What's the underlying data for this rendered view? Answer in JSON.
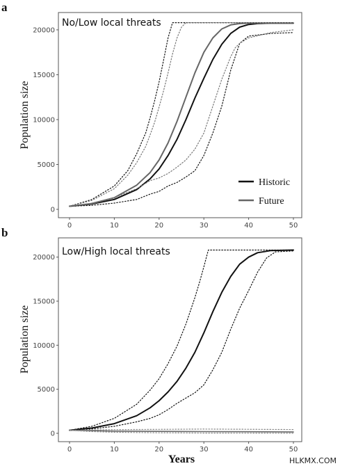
{
  "figure": {
    "watermark": "HLKMX.COM",
    "legend": {
      "placement": "bottom-right"
    }
  },
  "chart_data": [
    {
      "type": "line",
      "panel_label": "a",
      "title": "No/Low local threats",
      "xlabel": "",
      "ylabel": "Population size",
      "xlim": [
        0,
        50
      ],
      "ylim": [
        0,
        21000
      ],
      "xticks": [
        "0",
        "10",
        "20",
        "30",
        "40",
        "50"
      ],
      "yticks": [
        "0",
        "5000",
        "10000",
        "15000",
        "20000"
      ],
      "grid": false,
      "legend_entries": [
        "Historic",
        "Future"
      ],
      "series": [
        {
          "name": "Historic",
          "style": "solid",
          "color": "#111111",
          "width": 2,
          "x": [
            0,
            5,
            10,
            15,
            18,
            20,
            22,
            24,
            26,
            28,
            30,
            32,
            34,
            36,
            38,
            40,
            42,
            45,
            50
          ],
          "y": [
            350,
            600,
            1100,
            2200,
            3400,
            4500,
            6000,
            7800,
            10000,
            12400,
            14600,
            16700,
            18400,
            19600,
            20300,
            20600,
            20700,
            20750,
            20750
          ]
        },
        {
          "name": "Future",
          "style": "solid",
          "color": "#666666",
          "width": 2,
          "x": [
            0,
            5,
            10,
            15,
            18,
            20,
            22,
            24,
            26,
            28,
            30,
            32,
            34,
            36,
            38,
            40,
            45,
            50
          ],
          "y": [
            350,
            650,
            1300,
            2700,
            4100,
            5500,
            7400,
            9800,
            12500,
            15200,
            17500,
            19100,
            20100,
            20550,
            20700,
            20750,
            20750,
            20750
          ]
        },
        {
          "style": "dotted",
          "color": "#111111",
          "width": 1.2,
          "x": [
            0,
            5,
            10,
            15,
            18,
            20,
            22,
            24,
            26,
            28,
            30,
            32,
            34,
            35,
            36,
            38,
            40,
            45,
            50
          ],
          "y": [
            350,
            450,
            700,
            1100,
            1700,
            2000,
            2600,
            3000,
            3600,
            4300,
            6000,
            8500,
            11500,
            13500,
            15500,
            18500,
            19300,
            19600,
            19700
          ]
        },
        {
          "style": "dotted",
          "color": "#111111",
          "width": 1.2,
          "x": [
            0,
            5,
            10,
            13,
            15,
            17,
            18,
            19,
            20,
            21,
            22,
            23,
            25,
            30,
            40,
            50
          ],
          "y": [
            350,
            1100,
            2600,
            4300,
            6200,
            8500,
            10200,
            12100,
            14200,
            16600,
            19100,
            20800,
            20800,
            20800,
            20800,
            20800
          ]
        },
        {
          "style": "dotted",
          "color": "#777777",
          "width": 1.2,
          "x": [
            0,
            5,
            10,
            15,
            18,
            20,
            22,
            24,
            26,
            28,
            30,
            32,
            34,
            36,
            37,
            38,
            40,
            45,
            50
          ],
          "y": [
            350,
            700,
            1300,
            2300,
            3200,
            3500,
            4000,
            4700,
            5500,
            6700,
            8500,
            11500,
            14500,
            17000,
            18000,
            18500,
            19100,
            19700,
            20000
          ]
        },
        {
          "style": "dotted",
          "color": "#777777",
          "width": 1.2,
          "x": [
            0,
            5,
            10,
            13,
            15,
            17,
            18,
            19,
            20,
            21,
            22,
            23,
            24,
            25,
            26,
            30,
            40,
            50
          ],
          "y": [
            350,
            1000,
            2300,
            3800,
            5200,
            7000,
            8300,
            9700,
            11400,
            13200,
            15200,
            17300,
            19100,
            20300,
            20800,
            20800,
            20800,
            20800
          ]
        }
      ]
    },
    {
      "type": "line",
      "panel_label": "b",
      "title": "Low/High local threats",
      "xlabel": "Years",
      "ylabel": "Population size",
      "xlim": [
        0,
        50
      ],
      "ylim": [
        0,
        21000
      ],
      "xticks": [
        "0",
        "10",
        "20",
        "30",
        "40",
        "50"
      ],
      "yticks": [
        "0",
        "5000",
        "10000",
        "15000",
        "20000"
      ],
      "grid": false,
      "series": [
        {
          "style": "solid",
          "color": "#111111",
          "width": 2,
          "x": [
            0,
            5,
            10,
            15,
            18,
            20,
            22,
            24,
            26,
            28,
            30,
            32,
            34,
            36,
            38,
            40,
            42,
            45,
            50
          ],
          "y": [
            350,
            600,
            1100,
            2000,
            2900,
            3700,
            4700,
            5900,
            7400,
            9200,
            11400,
            13800,
            16000,
            17800,
            19200,
            20000,
            20500,
            20750,
            20800
          ]
        },
        {
          "style": "dotted",
          "color": "#111111",
          "width": 1.2,
          "x": [
            0,
            5,
            10,
            15,
            18,
            20,
            22,
            24,
            26,
            28,
            29,
            30,
            31,
            32,
            35,
            40,
            50
          ],
          "y": [
            350,
            800,
            1700,
            3300,
            4900,
            6200,
            7900,
            9900,
            12400,
            15400,
            17100,
            18900,
            20800,
            20800,
            20800,
            20800,
            20800
          ]
        },
        {
          "style": "dotted",
          "color": "#111111",
          "width": 1.2,
          "x": [
            0,
            5,
            10,
            15,
            18,
            20,
            22,
            24,
            26,
            28,
            30,
            32,
            34,
            36,
            38,
            40,
            42,
            44,
            46,
            50
          ],
          "y": [
            350,
            500,
            800,
            1300,
            1700,
            2100,
            2700,
            3400,
            4000,
            4600,
            5500,
            7200,
            9200,
            11800,
            14200,
            16200,
            18300,
            19900,
            20600,
            20700
          ]
        },
        {
          "style": "solid",
          "color": "#666666",
          "width": 1.6,
          "x": [
            0,
            5,
            10,
            20,
            30,
            40,
            50
          ],
          "y": [
            350,
            300,
            250,
            220,
            200,
            180,
            150
          ]
        },
        {
          "style": "dotted",
          "color": "#888888",
          "width": 1.2,
          "x": [
            0,
            5,
            10,
            20,
            30,
            40,
            50
          ],
          "y": [
            350,
            380,
            420,
            450,
            480,
            460,
            430
          ]
        },
        {
          "style": "dotted",
          "color": "#888888",
          "width": 1.2,
          "x": [
            0,
            5,
            10,
            20,
            30,
            40,
            50
          ],
          "y": [
            350,
            200,
            120,
            60,
            30,
            20,
            10
          ]
        }
      ]
    }
  ]
}
